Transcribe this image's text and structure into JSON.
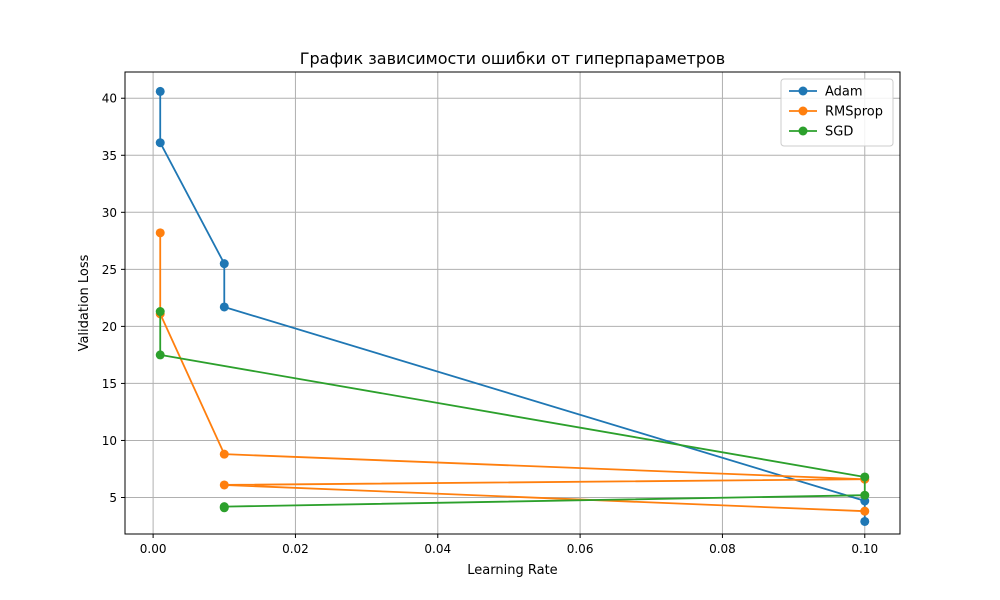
{
  "chart_data": {
    "type": "line",
    "title": "График зависимости ошибки от гиперпараметров",
    "xlabel": "Learning Rate",
    "ylabel": "Validation Loss",
    "xlim": [
      -0.00395,
      0.10495
    ],
    "ylim": [
      1.8,
      42.3
    ],
    "xticks": [
      0.0,
      0.02,
      0.04,
      0.06,
      0.08,
      0.1
    ],
    "xtick_labels": [
      "0.00",
      "0.02",
      "0.04",
      "0.06",
      "0.08",
      "0.10"
    ],
    "yticks": [
      5,
      10,
      15,
      20,
      25,
      30,
      35,
      40
    ],
    "ytick_labels": [
      "5",
      "10",
      "15",
      "20",
      "25",
      "30",
      "35",
      "40"
    ],
    "grid": true,
    "legend_position": "top-right",
    "series": [
      {
        "name": "Adam",
        "color": "#1f77b4",
        "x": [
          0.001,
          0.001,
          0.01,
          0.01,
          0.1,
          0.1
        ],
        "y": [
          40.6,
          36.1,
          25.5,
          21.7,
          4.7,
          2.9
        ]
      },
      {
        "name": "RMSprop",
        "color": "#ff7f0e",
        "x": [
          0.001,
          0.001,
          0.01,
          0.1,
          0.01,
          0.1
        ],
        "y": [
          28.2,
          21.1,
          8.8,
          6.6,
          6.1,
          3.8
        ]
      },
      {
        "name": "SGD",
        "color": "#2ca02c",
        "x": [
          0.001,
          0.001,
          0.1,
          0.1,
          0.01,
          0.01
        ],
        "y": [
          21.3,
          17.5,
          6.8,
          5.2,
          4.2,
          4.1
        ]
      }
    ]
  }
}
